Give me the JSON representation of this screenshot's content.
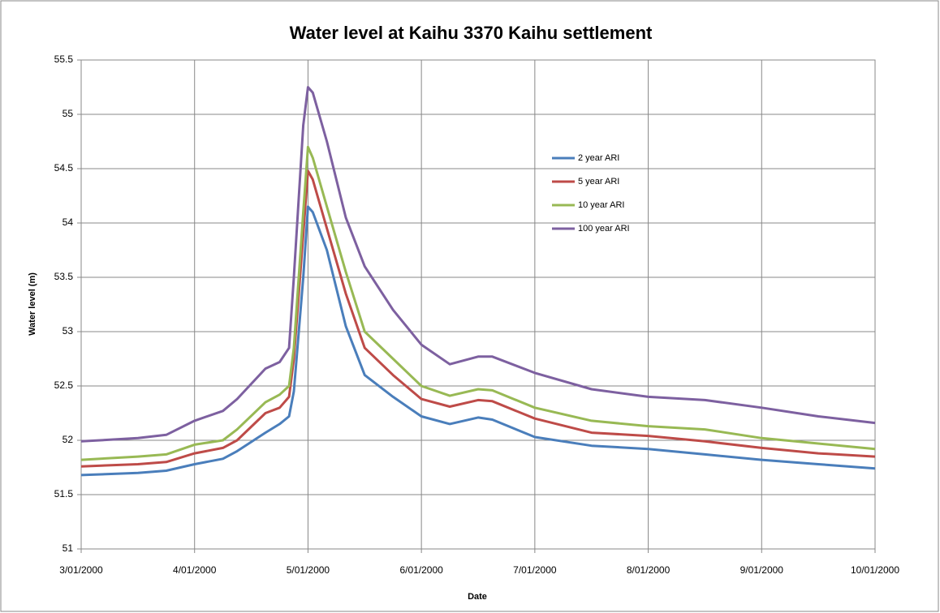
{
  "chart_data": {
    "type": "line",
    "title": "Water level at Kaihu 3370 Kaihu settlement",
    "x_label": "Date",
    "y_label": "Water level (m)",
    "x": [
      "2000-01-03T00:00",
      "2000-01-03T12:00",
      "2000-01-03T18:00",
      "2000-01-04T00:00",
      "2000-01-04T06:00",
      "2000-01-04T09:00",
      "2000-01-04T15:00",
      "2000-01-04T18:00",
      "2000-01-04T20:00",
      "2000-01-04T21:00",
      "2000-01-04T23:00",
      "2000-01-05T00:00",
      "2000-01-05T01:00",
      "2000-01-05T04:00",
      "2000-01-05T08:00",
      "2000-01-05T12:00",
      "2000-01-05T18:00",
      "2000-01-06T00:00",
      "2000-01-06T06:00",
      "2000-01-06T12:00",
      "2000-01-06T15:00",
      "2000-01-07T00:00",
      "2000-01-07T12:00",
      "2000-01-08T00:00",
      "2000-01-08T12:00",
      "2000-01-09T00:00",
      "2000-01-09T12:00",
      "2000-01-10T00:00"
    ],
    "series": [
      {
        "name": "2 year ARI",
        "color": "#4a7ebb",
        "values": [
          51.68,
          51.7,
          51.72,
          51.78,
          51.83,
          51.9,
          52.07,
          52.15,
          52.22,
          52.45,
          53.5,
          54.15,
          54.1,
          53.75,
          53.05,
          52.6,
          52.4,
          52.22,
          52.15,
          52.21,
          52.19,
          52.03,
          51.95,
          51.92,
          51.87,
          51.82,
          51.78,
          51.74
        ]
      },
      {
        "name": "5 year ARI",
        "color": "#be4b48",
        "values": [
          51.76,
          51.78,
          51.8,
          51.88,
          51.93,
          52.0,
          52.25,
          52.3,
          52.4,
          52.75,
          53.9,
          54.48,
          54.4,
          53.95,
          53.35,
          52.85,
          52.6,
          52.38,
          52.31,
          52.37,
          52.36,
          52.2,
          52.07,
          52.04,
          51.99,
          51.93,
          51.88,
          51.85
        ]
      },
      {
        "name": "10 year ARI",
        "color": "#98b954",
        "values": [
          51.82,
          51.85,
          51.87,
          51.96,
          52.0,
          52.1,
          52.35,
          52.42,
          52.5,
          52.85,
          54.1,
          54.7,
          54.6,
          54.15,
          53.55,
          53.0,
          52.75,
          52.5,
          52.41,
          52.47,
          52.46,
          52.3,
          52.18,
          52.13,
          52.1,
          52.02,
          51.97,
          51.92
        ]
      },
      {
        "name": "100 year ARI",
        "color": "#7d60a0",
        "values": [
          51.99,
          52.02,
          52.05,
          52.18,
          52.27,
          52.38,
          52.66,
          52.72,
          52.85,
          53.5,
          54.9,
          55.25,
          55.2,
          54.75,
          54.05,
          53.6,
          53.2,
          52.88,
          52.7,
          52.77,
          52.77,
          52.62,
          52.47,
          52.4,
          52.37,
          52.3,
          52.22,
          52.16
        ]
      }
    ],
    "xlim": [
      "2000-01-03T00:00",
      "2000-01-10T00:00"
    ],
    "xticks": [
      {
        "value": "2000-01-03T00:00",
        "label": "3/01/2000"
      },
      {
        "value": "2000-01-04T00:00",
        "label": "4/01/2000"
      },
      {
        "value": "2000-01-05T00:00",
        "label": "5/01/2000"
      },
      {
        "value": "2000-01-06T00:00",
        "label": "6/01/2000"
      },
      {
        "value": "2000-01-07T00:00",
        "label": "7/01/2000"
      },
      {
        "value": "2000-01-08T00:00",
        "label": "8/01/2000"
      },
      {
        "value": "2000-01-09T00:00",
        "label": "9/01/2000"
      },
      {
        "value": "2000-01-10T00:00",
        "label": "10/01/2000"
      }
    ],
    "ylim": [
      51,
      55.5
    ],
    "yticks": [
      51,
      51.5,
      52,
      52.5,
      53,
      53.5,
      54,
      54.5,
      55,
      55.5
    ],
    "grid": true,
    "legend": "upper right"
  }
}
